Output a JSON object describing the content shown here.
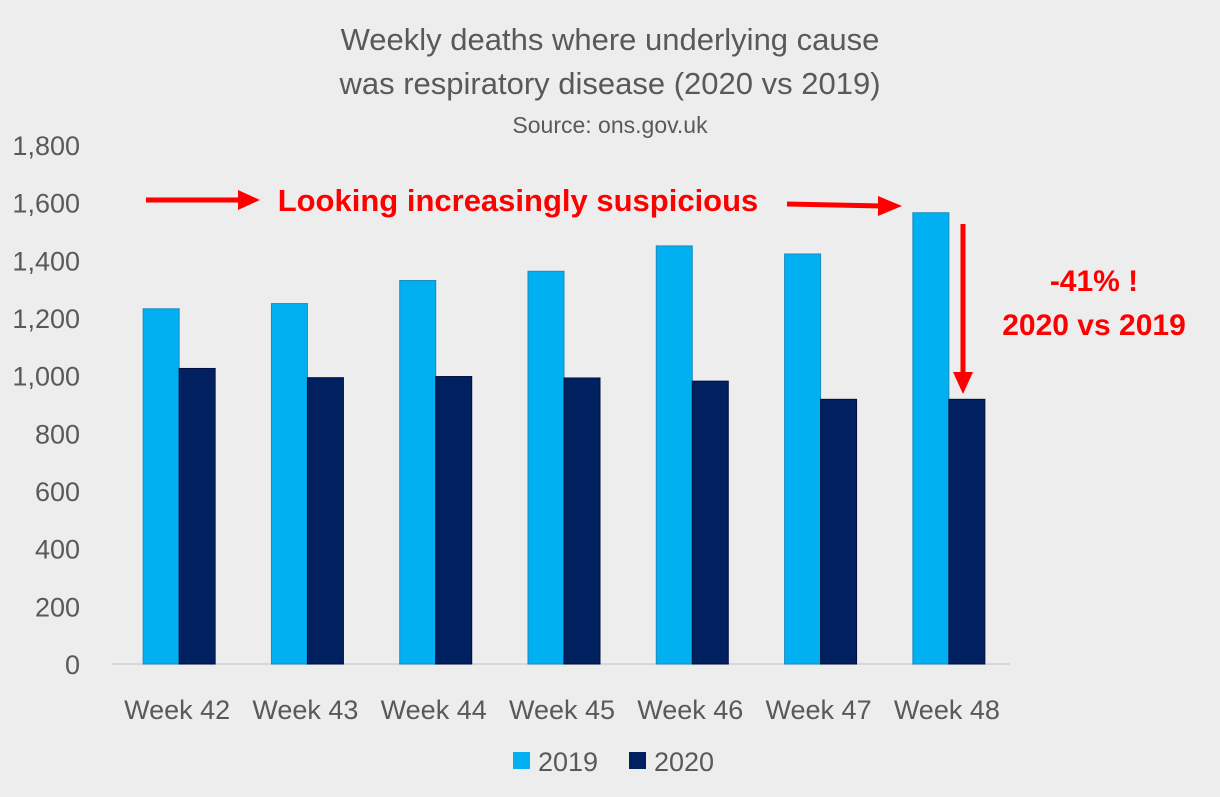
{
  "chart_data": {
    "type": "bar",
    "title_line1": "Weekly deaths where underlying cause",
    "title_line2": "was respiratory disease (2020 vs 2019)",
    "subtitle": "Source: ons.gov.uk",
    "categories": [
      "Week 42",
      "Week 43",
      "Week 44",
      "Week 45",
      "Week 46",
      "Week 47",
      "Week 48"
    ],
    "series": [
      {
        "name": "2019",
        "color": "#00b0f0",
        "values": [
          1232,
          1250,
          1330,
          1362,
          1450,
          1422,
          1565
        ]
      },
      {
        "name": "2020",
        "color": "#002060",
        "values": [
          1025,
          993,
          997,
          992,
          981,
          918,
          918
        ]
      }
    ],
    "ylim": [
      0,
      1800
    ],
    "y_ticks": [
      0,
      200,
      400,
      600,
      800,
      1000,
      1200,
      1400,
      1600,
      1800
    ],
    "y_tick_labels": [
      "0",
      "200",
      "400",
      "600",
      "800",
      "1,000",
      "1,200",
      "1,400",
      "1,600",
      "1,800"
    ],
    "grid": false,
    "legend_position": "bottom",
    "annotations": {
      "banner": "Looking increasingly suspicious",
      "change_line1": "-41% !",
      "change_line2": "2020 vs 2019",
      "color": "#ff0000"
    }
  }
}
